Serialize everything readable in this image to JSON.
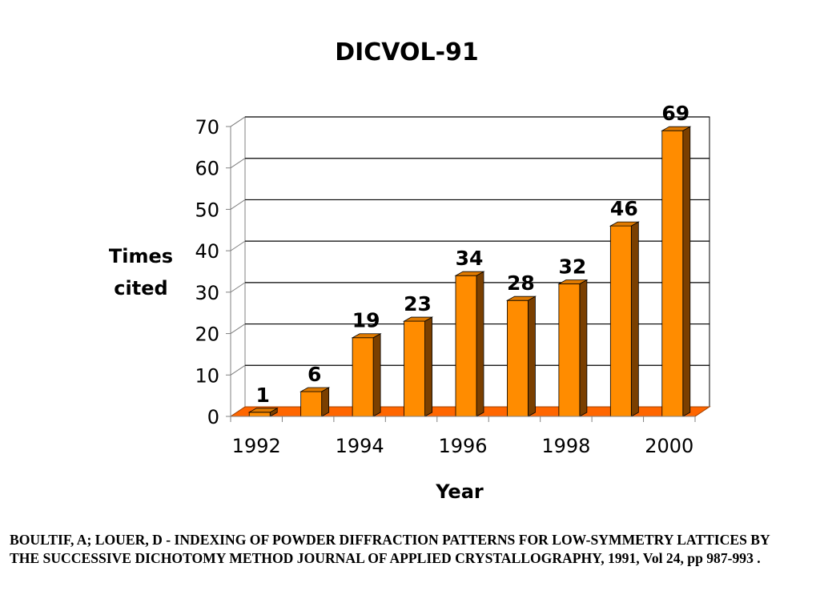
{
  "chart_data": {
    "type": "bar",
    "title": "DICVOL-91",
    "ylabel_line1": "Times",
    "ylabel_line2": "cited",
    "xlabel": "Year",
    "categories": [
      "1992",
      "1993",
      "1994",
      "1995",
      "1996",
      "1997",
      "1998",
      "1999",
      "2000"
    ],
    "values": [
      1,
      6,
      19,
      23,
      34,
      28,
      32,
      46,
      69
    ],
    "x_tick_labels": [
      "1992",
      "1994",
      "1996",
      "1998",
      "2000"
    ],
    "y_ticks": [
      0,
      10,
      20,
      30,
      40,
      50,
      60,
      70
    ],
    "ylim": [
      0,
      70
    ],
    "grid": true,
    "colors": {
      "bar_front": "#FF8C00",
      "bar_side": "#7A3F00",
      "bar_top": "#E07A00",
      "floor": "#FF6600"
    }
  },
  "citation": "BOULTIF, A; LOUER, D -  INDEXING OF POWDER DIFFRACTION PATTERNS FOR LOW-SYMMETRY LATTICES BY THE SUCCESSIVE DICHOTOMY METHOD  JOURNAL OF APPLIED CRYSTALLOGRAPHY, 1991, Vol 24, pp 987-993 ."
}
